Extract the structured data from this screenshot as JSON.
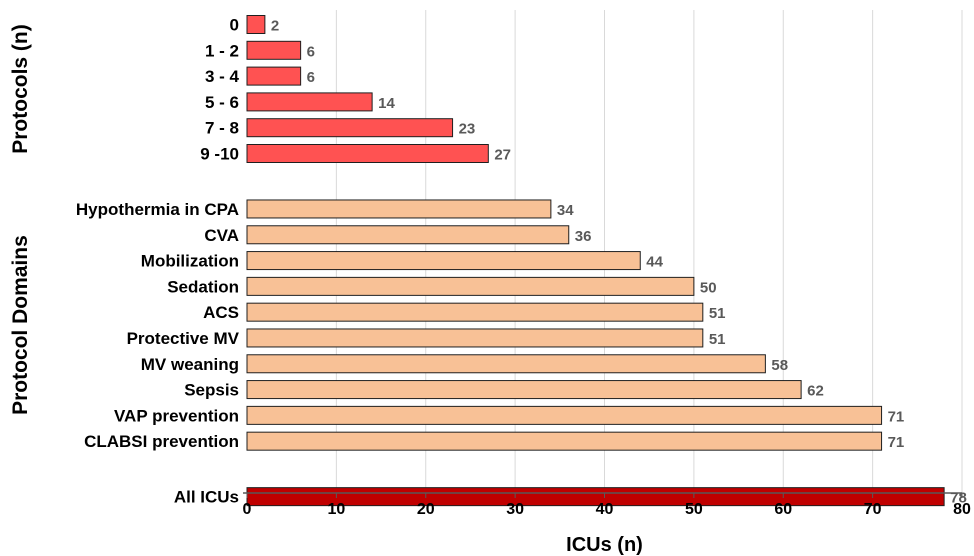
{
  "chart_data": {
    "type": "bar",
    "orientation": "horizontal",
    "xlabel": "ICUs (n)",
    "xlim": [
      0,
      80
    ],
    "xticks": [
      0,
      10,
      20,
      30,
      40,
      50,
      60,
      70,
      80
    ],
    "grid": "vertical",
    "groups": [
      {
        "name": "Protocols (n)",
        "color": "#ff5252",
        "categories": [
          "0",
          "1 - 2",
          "3 - 4",
          "5 - 6",
          "7 - 8",
          "9 -10"
        ],
        "values": [
          2,
          6,
          6,
          14,
          23,
          27
        ]
      },
      {
        "name": "Protocol Domains",
        "color": "#f8c196",
        "categories": [
          "Hypothermia in CPA",
          "CVA",
          "Mobilization",
          "Sedation",
          "ACS",
          "Protective MV",
          "MV weaning",
          "Sepsis",
          "VAP prevention",
          "CLABSI prevention"
        ],
        "values": [
          34,
          36,
          44,
          50,
          51,
          51,
          58,
          62,
          71,
          71
        ]
      },
      {
        "name": "",
        "color": "#c00000",
        "categories": [
          "All ICUs"
        ],
        "values": [
          78
        ]
      }
    ]
  }
}
